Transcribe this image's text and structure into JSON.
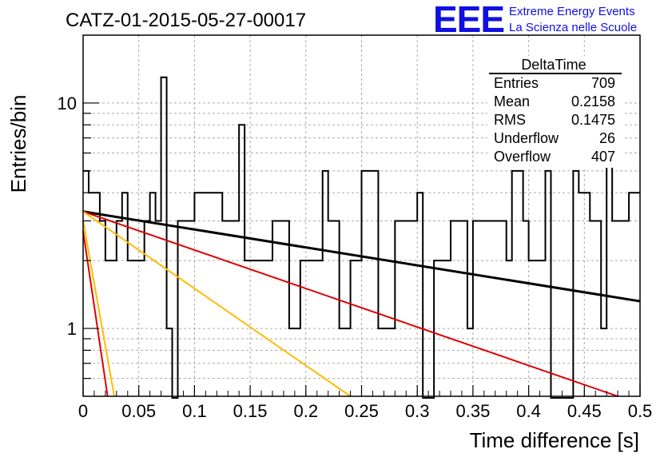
{
  "title": "CATZ-01-2015-05-27-00017",
  "logo": {
    "mark": "EEE",
    "line1": "Extreme Energy Events",
    "line2": "La Scienza nelle Scuole",
    "color": "#1010e0"
  },
  "stats": {
    "name": "DeltaTime",
    "rows": [
      {
        "label": "Entries",
        "value": "709"
      },
      {
        "label": "Mean",
        "value": "0.2158"
      },
      {
        "label": "RMS",
        "value": "0.1475"
      },
      {
        "label": "Underflow",
        "value": "26"
      },
      {
        "label": "Overflow",
        "value": "407"
      }
    ]
  },
  "chart_data": {
    "type": "histogram",
    "xlabel": "Time difference [s]",
    "ylabel": "Entries/bin",
    "xlim": [
      0,
      0.5
    ],
    "ylim": [
      0.5,
      20
    ],
    "yscale": "log",
    "grid": true,
    "x_ticks": [
      "0",
      "0.05",
      "0.1",
      "0.15",
      "0.2",
      "0.25",
      "0.3",
      "0.35",
      "0.4",
      "0.45",
      "0.5"
    ],
    "y_ticks": [
      "1",
      "10"
    ],
    "histogram": {
      "bin_width": 0.005,
      "counts": [
        5,
        4,
        4,
        3,
        2,
        2,
        3,
        4,
        2,
        2,
        2,
        3,
        4,
        3,
        13,
        1,
        0,
        3,
        3,
        3,
        4,
        4,
        4,
        4,
        4,
        3,
        3,
        3,
        8,
        2,
        2,
        2,
        2,
        2,
        3,
        3,
        3,
        1,
        1,
        2,
        2,
        2,
        2,
        5,
        3,
        3,
        1,
        1,
        2,
        2,
        5,
        5,
        5,
        1,
        1,
        1,
        3,
        3,
        3,
        3,
        4,
        0,
        0,
        2,
        2,
        2,
        3,
        3,
        3,
        1,
        3,
        3,
        3,
        3,
        3,
        3,
        2,
        5,
        5,
        3,
        2,
        2,
        2,
        5,
        0,
        0,
        0,
        0,
        5,
        4,
        4,
        3,
        3,
        1,
        6,
        3,
        3,
        3,
        4,
        4
      ],
      "color": "#000000"
    },
    "series": [
      {
        "x": [
          0,
          0.5
        ],
        "y": [
          3.3,
          1.32
        ],
        "color": "#000000"
      },
      {
        "x": [
          0,
          0.48
        ],
        "y": [
          3.3,
          0.5
        ],
        "color": "#dd0000"
      },
      {
        "x": [
          0,
          0.24
        ],
        "y": [
          3.3,
          0.5
        ],
        "color": "#ffbb00"
      },
      {
        "x": [
          0,
          0.022
        ],
        "y": [
          2.7,
          0.5
        ],
        "color": "#dd0000"
      },
      {
        "x": [
          0,
          0.028
        ],
        "y": [
          3.0,
          0.5
        ],
        "color": "#ffbb00"
      }
    ]
  }
}
